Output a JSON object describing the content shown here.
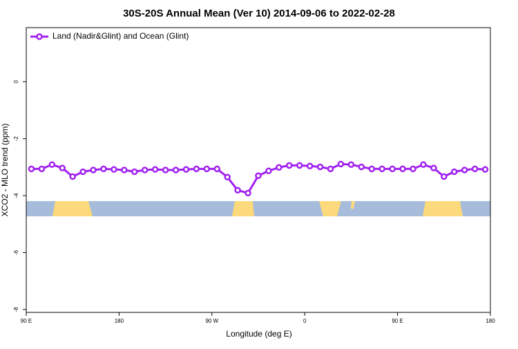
{
  "chart_data": {
    "type": "line",
    "title": "30S-20S Annual Mean (Ver 10)   2014-09-06 to 2022-02-28",
    "x_label": "Longitude (deg E)",
    "y_label": "XCO2 - MLO trend (ppm)",
    "x": [
      95,
      105,
      115,
      125,
      135,
      145,
      155,
      165,
      175,
      185,
      195,
      205,
      215,
      225,
      235,
      245,
      255,
      265,
      275,
      285,
      295,
      305,
      315,
      325,
      335,
      345,
      355,
      365,
      375,
      385,
      395,
      405,
      415,
      425,
      435,
      445,
      455,
      465,
      475,
      485,
      495,
      505,
      515,
      525,
      535
    ],
    "series": [
      {
        "name": "Land (Nadir&Glint) and Ocean (Glint)",
        "color": "#a020f0",
        "values": [
          -3.06,
          -3.06,
          -2.91,
          -3.03,
          -3.33,
          -3.16,
          -3.1,
          -3.06,
          -3.08,
          -3.1,
          -3.16,
          -3.1,
          -3.08,
          -3.1,
          -3.1,
          -3.08,
          -3.06,
          -3.06,
          -3.06,
          -3.35,
          -3.81,
          -3.91,
          -3.3,
          -3.13,
          -3.01,
          -2.94,
          -2.94,
          -2.96,
          -2.99,
          -3.06,
          -2.89,
          -2.91,
          -2.99,
          -3.06,
          -3.06,
          -3.06,
          -3.06,
          -3.06,
          -2.91,
          -3.03,
          -3.33,
          -3.16,
          -3.1,
          -3.06,
          -3.08
        ]
      }
    ],
    "xlim": [
      90,
      540
    ],
    "xticks": [
      {
        "value": 90,
        "label": "90 E"
      },
      {
        "value": 180,
        "label": "180"
      },
      {
        "value": 270,
        "label": "90 W"
      },
      {
        "value": 360,
        "label": "0"
      },
      {
        "value": 450,
        "label": "90 E"
      },
      {
        "value": 540,
        "label": "180"
      }
    ],
    "ylim": [
      -8.1,
      1.9
    ],
    "yticks": [
      0,
      -2,
      -4,
      -6,
      -8
    ],
    "legend": "top-left"
  }
}
